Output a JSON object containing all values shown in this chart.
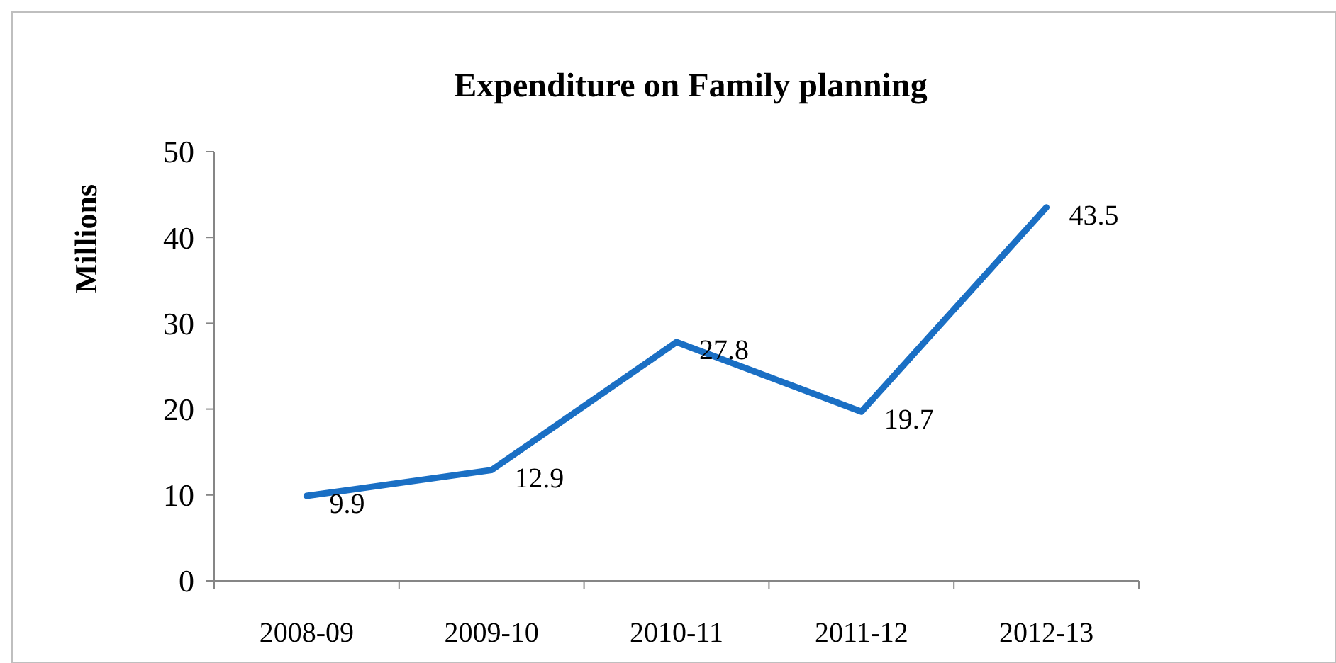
{
  "chart_data": {
    "type": "line",
    "title": "Expenditure on Family planning",
    "ylabel": "Millions",
    "categories": [
      "2008-09",
      "2009-10",
      "2010-11",
      "2011-12",
      "2012-13"
    ],
    "series": [
      {
        "color": "#1a6fc4",
        "values": [
          9.9,
          12.9,
          27.8,
          19.7,
          43.5
        ]
      }
    ],
    "ylim": [
      0,
      50
    ],
    "yticks": [
      0,
      10,
      20,
      30,
      40,
      50
    ],
    "grid": false,
    "data_labels": true,
    "marker": "none",
    "line_style": "solid"
  }
}
